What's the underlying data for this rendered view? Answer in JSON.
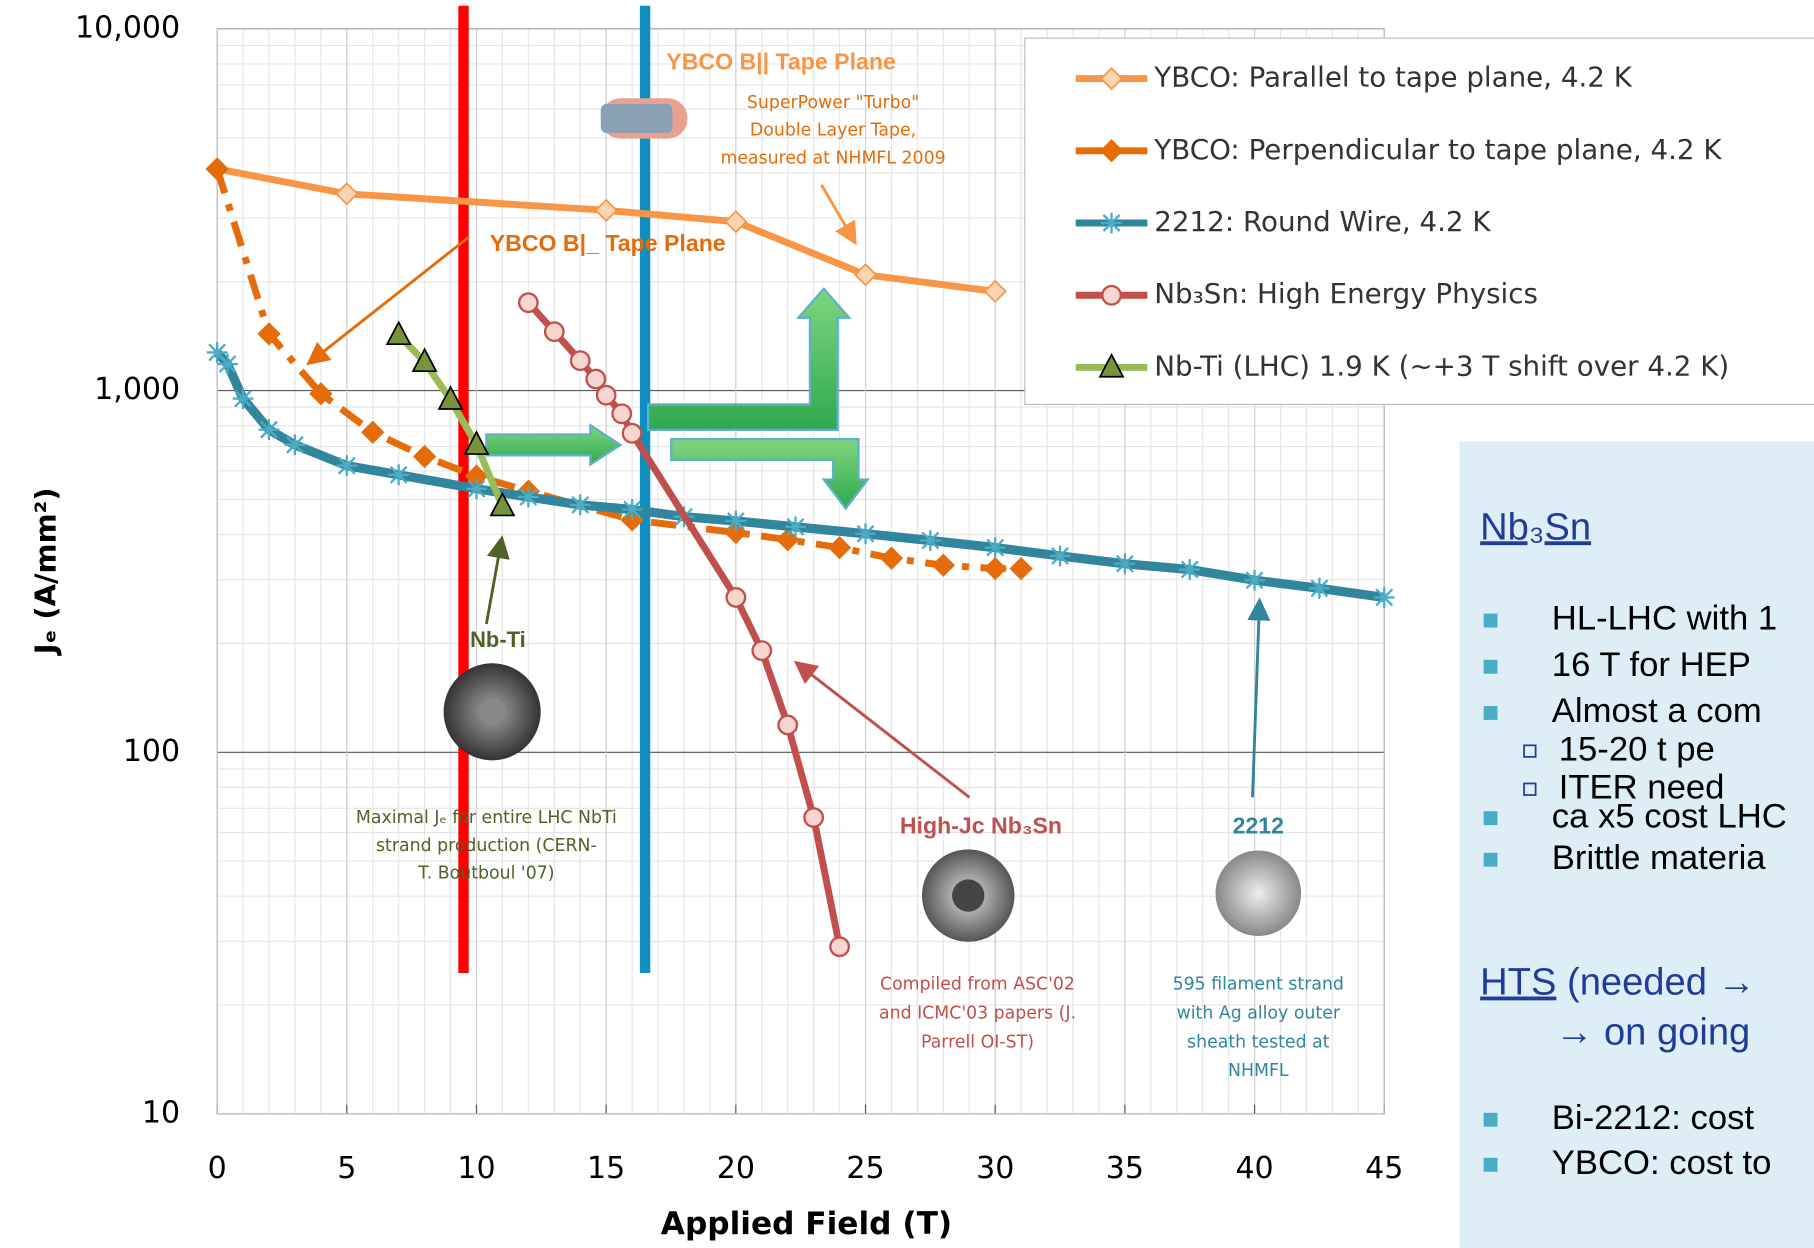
{
  "chart_data": {
    "type": "line",
    "xlabel": "Applied Field (T)",
    "ylabel": "Jₑ (A/mm²)",
    "xlim": [
      0,
      45
    ],
    "xticks": [
      0,
      5,
      10,
      15,
      20,
      25,
      30,
      35,
      40,
      45
    ],
    "ylim": [
      10,
      10000
    ],
    "yscale": "log",
    "yticks": [
      {
        "value": 10,
        "label": "10"
      },
      {
        "value": 100,
        "label": "100"
      },
      {
        "value": 1000,
        "label": "1,000"
      },
      {
        "value": 10000,
        "label": "10,000"
      }
    ],
    "grid": true,
    "series": [
      {
        "name": "YBCO: Parallel to tape plane, 4.2 K",
        "color": "#f79646",
        "marker": "diamond",
        "dash": "solid",
        "x": [
          0,
          5,
          15,
          20,
          25,
          30
        ],
        "values": [
          4100,
          3500,
          3150,
          2930,
          2090,
          1880
        ]
      },
      {
        "name": "YBCO: Perpendicular to tape plane, 4.2 K",
        "color": "#e46c0a",
        "marker": "diamond-filled",
        "dash": "dashdot",
        "x": [
          0,
          2,
          4,
          6,
          8,
          10,
          12,
          16,
          20,
          22,
          24,
          26,
          28,
          30,
          31
        ],
        "values": [
          4100,
          1435,
          980,
          767,
          657,
          580,
          527,
          439,
          405,
          387,
          368,
          344,
          329,
          322,
          322
        ]
      },
      {
        "name": "2212: Round Wire, 4.2 K",
        "color": "#31859c",
        "marker": "star",
        "dash": "solid",
        "x": [
          0,
          0.4,
          1,
          2,
          3,
          5,
          7,
          10,
          12,
          14,
          16,
          18,
          20,
          22.3,
          25,
          27.5,
          30,
          32.5,
          35,
          37.5,
          40,
          42.5,
          45
        ],
        "values": [
          1275,
          1184,
          950,
          780,
          708,
          620,
          585,
          535,
          508,
          483,
          469,
          448,
          436,
          420,
          402,
          385,
          368,
          349,
          332,
          320,
          299,
          284,
          268
        ]
      },
      {
        "name": "Nb₃Sn: High Energy Physics",
        "color": "#c0504d",
        "marker": "circle",
        "dash": "solid",
        "x": [
          12,
          13,
          14,
          14.6,
          15,
          15.6,
          16,
          20,
          21,
          22,
          23,
          24
        ],
        "values": [
          1750,
          1455,
          1210,
          1076,
          971,
          863,
          762,
          268,
          191,
          119,
          66,
          29
        ]
      },
      {
        "name": "Nb-Ti (LHC) 1.9 K (~+3 T shift over 4.2 K)",
        "color": "#9bbb59",
        "marker": "triangle",
        "dash": "solid",
        "x": [
          7,
          8,
          9,
          10,
          11
        ],
        "values": [
          1425,
          1200,
          943,
          708,
          479
        ]
      }
    ],
    "reference_lines": [
      {
        "x": 9.5,
        "color": "#ff0000"
      },
      {
        "x": 16.5,
        "color": "#0e8fbf"
      }
    ],
    "annotations": [
      {
        "lines": [
          "YBCO B|| Tape Plane"
        ]
      },
      {
        "lines": [
          "SuperPower \"Turbo\"",
          "Double Layer Tape,",
          "measured at NHMFL 2009"
        ]
      },
      {
        "lines": [
          "YBCO B|_ Tape Plane"
        ]
      },
      {
        "lines": [
          "Nb-Ti"
        ]
      },
      {
        "lines": [
          "Maximal Jₑ for entire LHC NbTi",
          "strand production (CERN-",
          "T. Boutboul '07)"
        ]
      },
      {
        "lines": [
          "High-Jc Nb₃Sn"
        ]
      },
      {
        "lines": [
          "Compiled from ASC'02",
          "and ICMC'03 papers (J.",
          "Parrell OI-ST)"
        ]
      },
      {
        "lines": [
          "2212"
        ]
      },
      {
        "lines": [
          "595 filament strand",
          "with Ag alloy outer",
          "sheath tested at",
          "NHMFL"
        ]
      }
    ]
  },
  "side_panel": {
    "heading1": "Nb₃Sn",
    "bullets1": [
      {
        "text": "HL-LHC with 1",
        "level": 1
      },
      {
        "text": "16 T for HEP",
        "level": 1
      },
      {
        "text": "Almost a com",
        "level": 1
      },
      {
        "text": "15-20 t pe",
        "level": 2
      },
      {
        "text": "ITER need",
        "level": 2
      },
      {
        "text": "ca x5 cost LHC",
        "level": 1
      },
      {
        "text": "Brittle materia",
        "level": 1
      }
    ],
    "heading2": "HTS",
    "heading2_rest": " (needed →",
    "heading2_line2": "→ on going",
    "bullets2": [
      {
        "text": "Bi-2212: cost",
        "level": 1
      },
      {
        "text": "YBCO: cost to",
        "level": 1
      }
    ]
  }
}
